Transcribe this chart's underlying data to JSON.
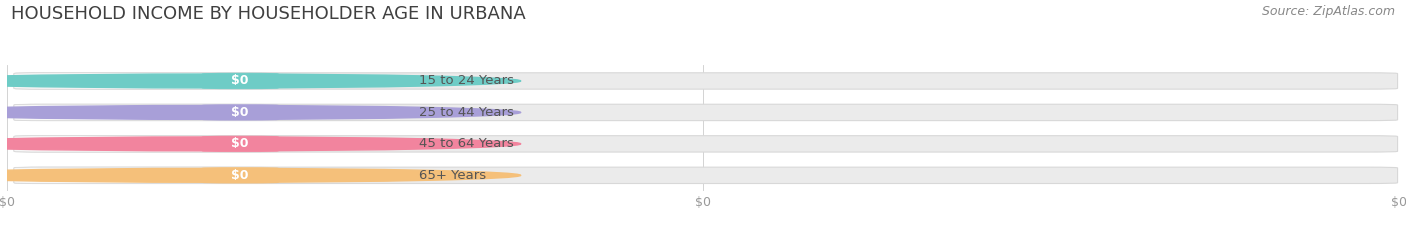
{
  "title": "HOUSEHOLD INCOME BY HOUSEHOLDER AGE IN URBANA",
  "source": "Source: ZipAtlas.com",
  "categories": [
    "15 to 24 Years",
    "25 to 44 Years",
    "45 to 64 Years",
    "65+ Years"
  ],
  "values": [
    0,
    0,
    0,
    0
  ],
  "bar_colors": [
    "#6eccc6",
    "#a89fd8",
    "#f2849e",
    "#f5c07a"
  ],
  "bar_bg_color": "#ebebeb",
  "label_pill_color": "#f7f7f7",
  "background_color": "#ffffff",
  "value_label_color": "#ffffff",
  "label_text_color": "#555555",
  "title_color": "#404040",
  "source_color": "#888888",
  "title_fontsize": 13,
  "source_fontsize": 9,
  "label_fontsize": 9.5,
  "value_fontsize": 9,
  "tick_fontsize": 9,
  "tick_color": "#999999"
}
